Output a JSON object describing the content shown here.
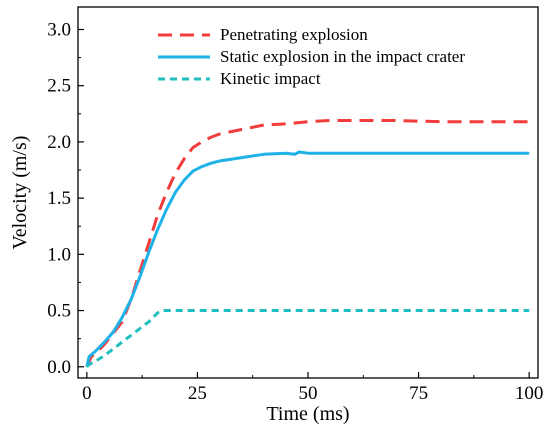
{
  "chart_data": {
    "type": "line",
    "xlabel": "Time (ms)",
    "ylabel": "Velocity (m/s)",
    "xlim": [
      -2,
      102
    ],
    "ylim": [
      -0.1,
      3.2
    ],
    "x_ticks": [
      0,
      25,
      50,
      75,
      100
    ],
    "x_tick_labels": [
      "0",
      "25",
      "50",
      "75",
      "100"
    ],
    "y_ticks": [
      0.0,
      0.5,
      1.0,
      1.5,
      2.0,
      2.5,
      3.0
    ],
    "y_tick_labels": [
      "0.0",
      "0.5",
      "1.0",
      "1.5",
      "2.0",
      "2.5",
      "3.0"
    ],
    "grid": false,
    "legend_position": "top-right",
    "series": [
      {
        "name": "Penetrating explosion",
        "color": "#f23c3c",
        "dash": "dashed",
        "x": [
          0,
          1,
          2,
          4,
          6,
          8,
          10,
          12,
          14,
          16,
          18,
          20,
          22,
          24,
          26,
          28,
          30,
          35,
          40,
          45,
          50,
          55,
          60,
          70,
          80,
          90,
          100
        ],
        "y": [
          0.0,
          0.09,
          0.12,
          0.2,
          0.3,
          0.4,
          0.6,
          0.85,
          1.1,
          1.35,
          1.55,
          1.72,
          1.85,
          1.95,
          2.0,
          2.04,
          2.07,
          2.11,
          2.15,
          2.16,
          2.18,
          2.19,
          2.19,
          2.19,
          2.18,
          2.18,
          2.18
        ]
      },
      {
        "name": "Static explosion in the impact crater",
        "color": "#1fb2e8",
        "dash": "solid",
        "x": [
          0,
          0.5,
          2,
          4,
          6,
          8,
          10,
          12,
          14,
          16,
          18,
          20,
          22,
          24,
          26,
          28,
          30,
          35,
          40,
          45,
          47,
          48,
          50,
          60,
          70,
          80,
          90,
          100
        ],
        "y": [
          0.0,
          0.09,
          0.14,
          0.22,
          0.31,
          0.44,
          0.6,
          0.8,
          1.02,
          1.22,
          1.4,
          1.55,
          1.66,
          1.74,
          1.78,
          1.81,
          1.83,
          1.86,
          1.89,
          1.9,
          1.89,
          1.91,
          1.9,
          1.9,
          1.9,
          1.9,
          1.9,
          1.9
        ]
      },
      {
        "name": "Kinetic impact",
        "color": "#1fbfbf",
        "dash": "dotted",
        "x": [
          0,
          0.5,
          2,
          4,
          6,
          8,
          10,
          12,
          14,
          16,
          17,
          20,
          30,
          40,
          50,
          60,
          70,
          80,
          90,
          100
        ],
        "y": [
          0.0,
          0.02,
          0.05,
          0.1,
          0.16,
          0.22,
          0.28,
          0.34,
          0.4,
          0.48,
          0.5,
          0.5,
          0.5,
          0.5,
          0.5,
          0.5,
          0.5,
          0.5,
          0.5,
          0.5
        ]
      }
    ]
  }
}
